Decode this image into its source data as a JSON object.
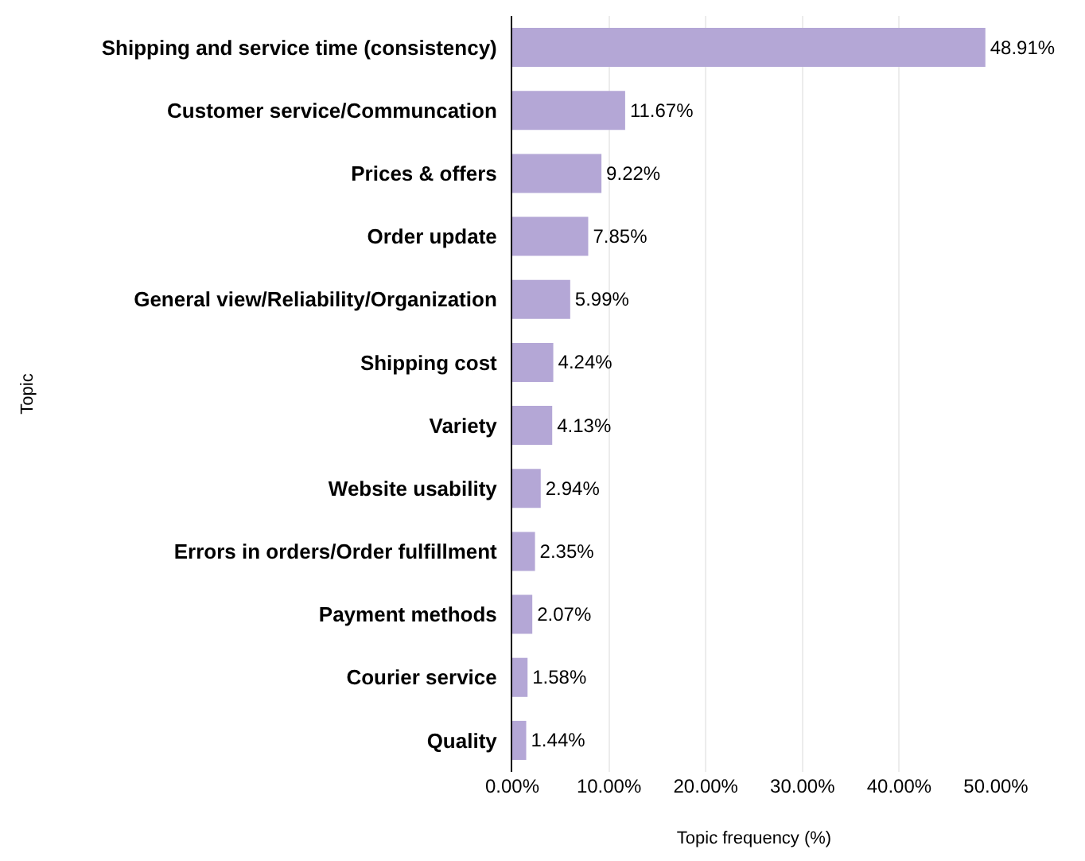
{
  "chart_data": {
    "type": "bar",
    "orientation": "horizontal",
    "xlabel": "Topic frequency (%)",
    "ylabel": "Topic",
    "categories": [
      "Shipping and service time (consistency)",
      "Customer service/Communcation",
      "Prices & offers",
      "Order update",
      "General view/Reliability/Organization",
      "Shipping cost",
      "Variety",
      "Website usability",
      "Errors in orders/Order fulfillment",
      "Payment methods",
      "Courier service",
      "Quality"
    ],
    "values": [
      48.91,
      11.67,
      9.22,
      7.85,
      5.99,
      4.24,
      4.13,
      2.94,
      2.35,
      2.07,
      1.58,
      1.44
    ],
    "value_labels": [
      "48.91%",
      "11.67%",
      "9.22%",
      "7.85%",
      "5.99%",
      "4.24%",
      "4.13%",
      "2.94%",
      "2.35%",
      "2.07%",
      "1.58%",
      "1.44%"
    ],
    "color": "#b4a7d6",
    "xlim": [
      0,
      50
    ],
    "xticks": [
      {
        "value": 0,
        "label": "0.00%"
      },
      {
        "value": 10,
        "label": "10.00%"
      },
      {
        "value": 20,
        "label": "20.00%"
      },
      {
        "value": 30,
        "label": "30.00%"
      },
      {
        "value": 40,
        "label": "40.00%"
      },
      {
        "value": 50,
        "label": "50.00%"
      }
    ],
    "grid": "x",
    "legend": false
  }
}
